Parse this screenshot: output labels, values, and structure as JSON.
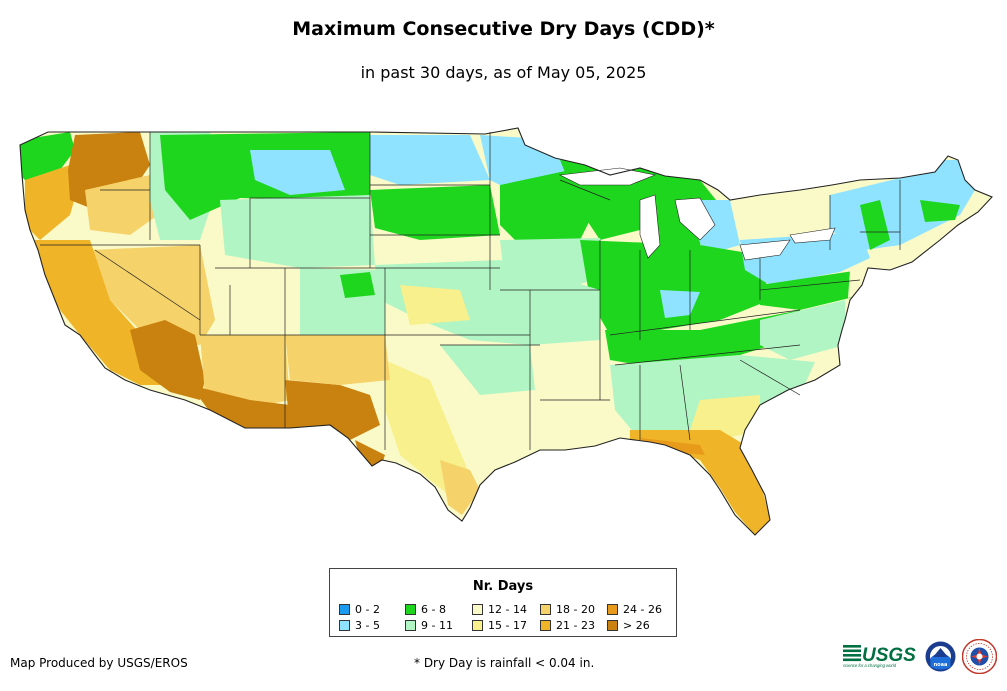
{
  "title": "Maximum Consecutive Dry Days (CDD)*",
  "subtitle": "in past 30 days, as of May 05, 2025",
  "legend": {
    "title": "Nr. Days",
    "items": [
      {
        "label": "0 - 2",
        "color": "#1a9bf0"
      },
      {
        "label": "3 - 5",
        "color": "#8fe3ff"
      },
      {
        "label": "6 - 8",
        "color": "#1fd61f"
      },
      {
        "label": "9 - 11",
        "color": "#b2f5c4"
      },
      {
        "label": "12 - 14",
        "color": "#fafac8"
      },
      {
        "label": "15 - 17",
        "color": "#f8f08c"
      },
      {
        "label": "18 - 20",
        "color": "#f5d36a"
      },
      {
        "label": "21 - 23",
        "color": "#f0b429"
      },
      {
        "label": "24 - 26",
        "color": "#e89a1a"
      },
      {
        "label": "> 26",
        "color": "#c9820f"
      }
    ]
  },
  "footer": {
    "producer": "Map Produced by USGS/EROS",
    "footnote": "* Dry Day is rainfall < 0.04 in."
  },
  "logos": {
    "usgs": "USGS",
    "usgs_tagline": "science for a changing world",
    "noaa": "noaa"
  }
}
